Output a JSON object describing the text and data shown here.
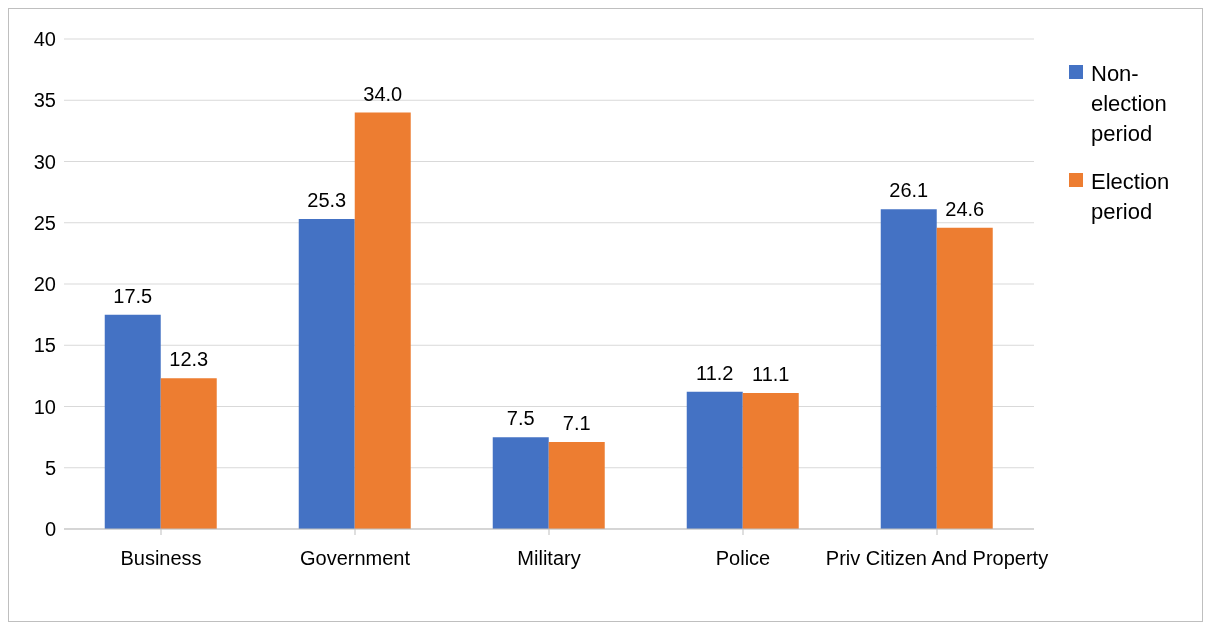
{
  "chart_data": {
    "type": "bar",
    "categories": [
      "Business",
      "Government",
      "Military",
      "Police",
      "Priv Citizen And Property"
    ],
    "series": [
      {
        "name": "Non-election period",
        "color": "#4472c4",
        "values": [
          17.5,
          25.3,
          7.5,
          11.2,
          26.1
        ],
        "value_labels": [
          "17.5",
          "25.3",
          "7.5",
          "11.2",
          "26.1"
        ]
      },
      {
        "name": "Election period",
        "color": "#ed7d31",
        "values": [
          12.3,
          34.0,
          7.1,
          11.1,
          24.6
        ],
        "value_labels": [
          "12.3",
          "34.0",
          "7.1",
          "11.1",
          "24.6"
        ]
      }
    ],
    "ylim": [
      0,
      40
    ],
    "yticks": [
      0,
      5,
      10,
      15,
      20,
      25,
      30,
      35,
      40
    ],
    "grid": "y",
    "legend": "right"
  }
}
